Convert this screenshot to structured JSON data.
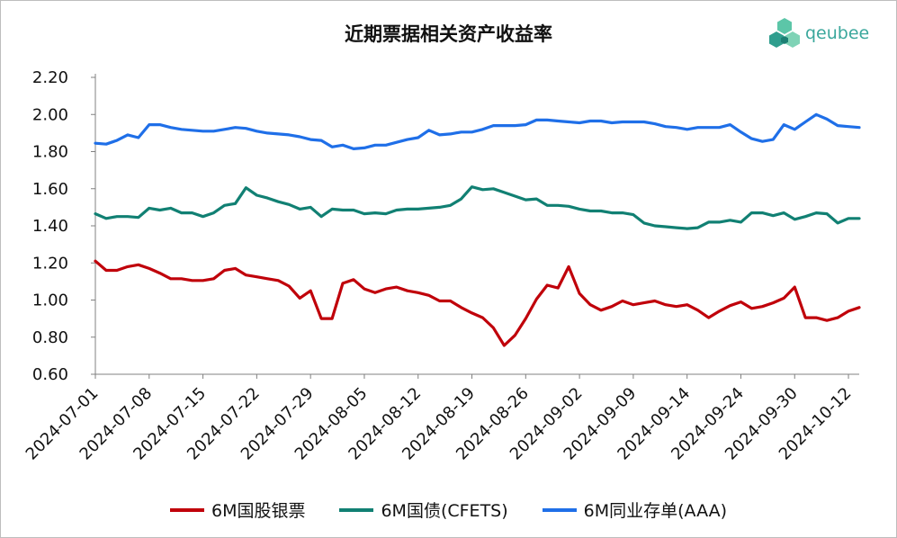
{
  "brand": {
    "logo_text": "qeubee"
  },
  "colors": {
    "series_red": "#c0000a",
    "series_teal": "#118073",
    "series_blue": "#1f6fe8",
    "logo": "#3aa79c"
  },
  "chart_data": {
    "type": "line",
    "title": "近期票据相关资产收益率",
    "xlabel": "",
    "ylabel": "",
    "ylim": [
      0.6,
      2.2
    ],
    "yticks": [
      "0.60",
      "0.80",
      "1.00",
      "1.20",
      "1.40",
      "1.60",
      "1.80",
      "2.00",
      "2.20"
    ],
    "xtick_labels": [
      "2024-07-01",
      "2024-07-08",
      "2024-07-15",
      "2024-07-22",
      "2024-07-29",
      "2024-08-05",
      "2024-08-12",
      "2024-08-19",
      "2024-08-26",
      "2024-09-02",
      "2024-09-09",
      "2024-09-14",
      "2024-09-24",
      "2024-09-30",
      "2024-10-12"
    ],
    "legend_position": "bottom",
    "grid": false,
    "series": [
      {
        "name": "6M国股银票",
        "color": "#c0000a",
        "values": [
          1.21,
          1.16,
          1.16,
          1.18,
          1.19,
          1.17,
          1.145,
          1.115,
          1.115,
          1.105,
          1.105,
          1.115,
          1.16,
          1.17,
          1.135,
          1.125,
          1.115,
          1.105,
          1.075,
          1.01,
          1.05,
          0.9,
          0.9,
          1.09,
          1.11,
          1.06,
          1.04,
          1.06,
          1.07,
          1.05,
          1.04,
          1.025,
          0.995,
          0.995,
          0.96,
          0.93,
          0.905,
          0.85,
          0.755,
          0.81,
          0.9,
          1.005,
          1.08,
          1.065,
          1.18,
          1.035,
          0.975,
          0.945,
          0.965,
          0.995,
          0.975,
          0.985,
          0.995,
          0.975,
          0.965,
          0.975,
          0.945,
          0.905,
          0.94,
          0.97,
          0.99,
          0.955,
          0.965,
          0.985,
          1.01,
          1.07,
          0.905,
          0.905,
          0.89,
          0.905,
          0.94,
          0.96
        ]
      },
      {
        "name": "6M国债(CFETS)",
        "color": "#118073",
        "values": [
          1.465,
          1.44,
          1.45,
          1.45,
          1.445,
          1.495,
          1.485,
          1.495,
          1.47,
          1.47,
          1.45,
          1.47,
          1.51,
          1.52,
          1.605,
          1.565,
          1.55,
          1.53,
          1.515,
          1.49,
          1.5,
          1.45,
          1.49,
          1.485,
          1.485,
          1.465,
          1.47,
          1.465,
          1.485,
          1.49,
          1.49,
          1.495,
          1.5,
          1.51,
          1.545,
          1.61,
          1.595,
          1.6,
          1.58,
          1.56,
          1.54,
          1.545,
          1.51,
          1.51,
          1.505,
          1.49,
          1.48,
          1.48,
          1.47,
          1.47,
          1.46,
          1.415,
          1.4,
          1.395,
          1.39,
          1.385,
          1.39,
          1.42,
          1.42,
          1.43,
          1.42,
          1.47,
          1.47,
          1.455,
          1.47,
          1.435,
          1.45,
          1.47,
          1.465,
          1.415,
          1.44,
          1.44
        ]
      },
      {
        "name": "6M同业存单(AAA)",
        "color": "#1f6fe8",
        "values": [
          1.845,
          1.84,
          1.86,
          1.89,
          1.875,
          1.945,
          1.945,
          1.93,
          1.92,
          1.915,
          1.91,
          1.91,
          1.92,
          1.93,
          1.925,
          1.91,
          1.9,
          1.895,
          1.89,
          1.88,
          1.865,
          1.86,
          1.825,
          1.835,
          1.815,
          1.82,
          1.835,
          1.835,
          1.85,
          1.865,
          1.875,
          1.915,
          1.89,
          1.895,
          1.905,
          1.905,
          1.92,
          1.94,
          1.94,
          1.94,
          1.945,
          1.97,
          1.97,
          1.965,
          1.96,
          1.955,
          1.965,
          1.965,
          1.955,
          1.96,
          1.96,
          1.96,
          1.95,
          1.935,
          1.93,
          1.92,
          1.93,
          1.93,
          1.93,
          1.945,
          1.905,
          1.87,
          1.855,
          1.865,
          1.945,
          1.92,
          1.96,
          2.0,
          1.975,
          1.94,
          1.935,
          1.93
        ]
      }
    ]
  }
}
